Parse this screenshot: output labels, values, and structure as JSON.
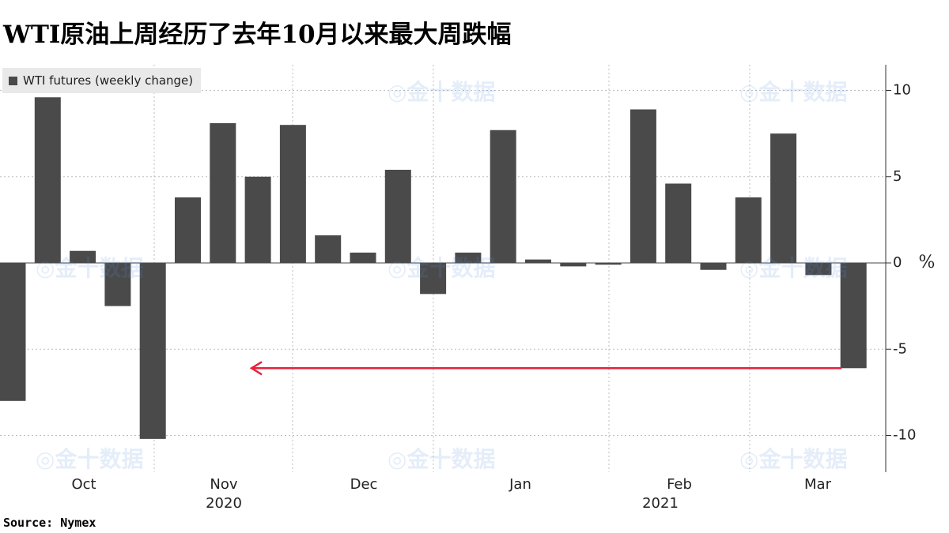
{
  "header": {
    "title": "WTI原油上周经历了去年10月以来最大周跌幅"
  },
  "footer": {
    "source": "Source:  Nymex"
  },
  "watermark": {
    "text": "金十数据"
  },
  "colors": {
    "bar": "#4a4a4a",
    "arrow": "#e8213c",
    "grid": "#bdbdbd"
  },
  "chart_data": {
    "type": "bar",
    "legend": {
      "label": "WTI futures (weekly change)",
      "placement": "top-left"
    },
    "unit": "%",
    "y_axis": {
      "position": "right",
      "ylim": [
        -12,
        11
      ],
      "ticks": [
        10,
        5,
        0,
        -5,
        -10
      ],
      "grid": true
    },
    "x_axis": {
      "months": [
        {
          "label": "Oct"
        },
        {
          "label": "Nov"
        },
        {
          "label": "Dec"
        },
        {
          "label": "Jan"
        },
        {
          "label": "Feb"
        },
        {
          "label": "Mar"
        }
      ],
      "years": [
        {
          "label": "2020"
        },
        {
          "label": "2021"
        }
      ]
    },
    "series": [
      {
        "values": [
          -8.0,
          9.6,
          0.7,
          -2.5,
          -10.2,
          3.8,
          8.1,
          5.0,
          8.0,
          1.6,
          0.6,
          5.4,
          -1.8,
          0.6,
          7.7,
          0.2,
          -0.2,
          -0.1,
          8.9,
          4.6,
          -0.4,
          3.8,
          7.5,
          -0.7,
          -6.1
        ]
      }
    ],
    "annotation": {
      "type": "arrow",
      "direction": "left",
      "y": -6.1,
      "from_bar_index": 24,
      "to_bar_index": 7
    }
  }
}
